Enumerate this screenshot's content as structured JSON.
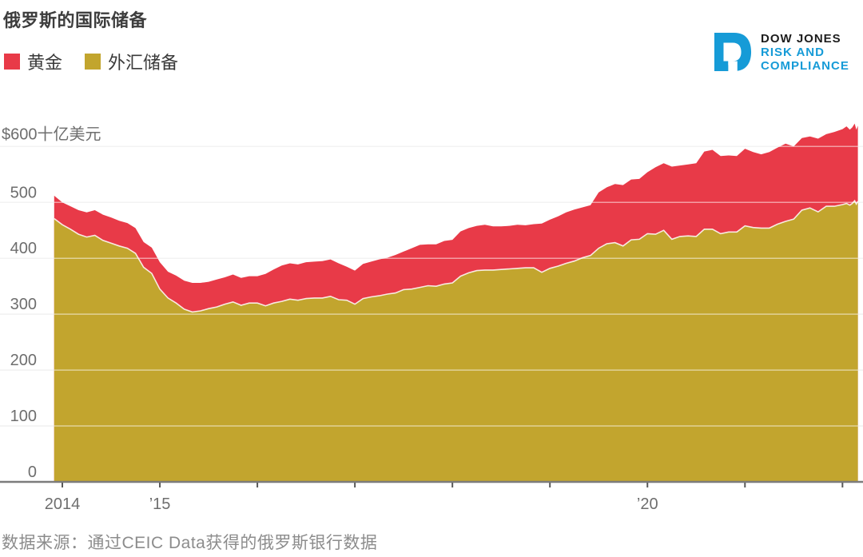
{
  "title": "俄罗斯的国际储备",
  "legend": [
    {
      "label": "黄金",
      "color": "#e83a48"
    },
    {
      "label": "外汇储备",
      "color": "#c2a52e"
    }
  ],
  "logo": {
    "alt": "Dow Jones Risk and Compliance",
    "line1": "DOW JONES",
    "line2": "RISK AND",
    "line3": "COMPLIANCE",
    "blue": "#169bd7",
    "dark": "#1d1d1d"
  },
  "source": "数据来源：通过CEIC Data获得的俄罗斯银行数据",
  "chart_data": {
    "type": "area",
    "stacked": true,
    "title": "俄罗斯的国际储备",
    "y_unit": "十亿美元",
    "y_top_label": "$600十亿美元",
    "ylim": [
      0,
      600
    ],
    "y_ticks": [
      {
        "value": 0,
        "label": "0"
      },
      {
        "value": 100,
        "label": "100"
      },
      {
        "value": 200,
        "label": "200"
      },
      {
        "value": 300,
        "label": "300"
      },
      {
        "value": 400,
        "label": "400"
      },
      {
        "value": 500,
        "label": "500"
      },
      {
        "value": 600,
        "label": "$600十亿美元"
      }
    ],
    "x_year_ticks_t": [
      0,
      12,
      24,
      36,
      48,
      60,
      72,
      84,
      96
    ],
    "x_tick_labels": [
      {
        "t": 0,
        "label": "2014"
      },
      {
        "t": 12,
        "label": "’15"
      },
      {
        "t": 72,
        "label": "’20"
      }
    ],
    "grid": true,
    "legend_position": "top-left",
    "series_info": [
      {
        "name": "外汇储备",
        "color": "#c2a52e",
        "role": "base"
      },
      {
        "name": "黄金",
        "color": "#e83a48",
        "role": "stacked-on-top"
      }
    ],
    "x_note": "t = months since Jan 2014, monthly data with weekly detail at the end",
    "t": [
      -1,
      0,
      1,
      2,
      3,
      4,
      5,
      6,
      7,
      8,
      9,
      10,
      11,
      12,
      13,
      14,
      15,
      16,
      17,
      18,
      19,
      20,
      21,
      22,
      23,
      24,
      25,
      26,
      27,
      28,
      29,
      30,
      31,
      32,
      33,
      34,
      35,
      36,
      37,
      38,
      39,
      40,
      41,
      42,
      43,
      44,
      45,
      46,
      47,
      48,
      49,
      50,
      51,
      52,
      53,
      54,
      55,
      56,
      57,
      58,
      59,
      60,
      61,
      62,
      63,
      64,
      65,
      66,
      67,
      68,
      69,
      70,
      71,
      72,
      73,
      74,
      75,
      76,
      77,
      78,
      79,
      80,
      81,
      82,
      83,
      84,
      85,
      86,
      87,
      88,
      89,
      90,
      91,
      92,
      93,
      94,
      95,
      96,
      96.5,
      96.9,
      97.2,
      97.5,
      97.7,
      97.9
    ],
    "fx_reserves": [
      471,
      460,
      452,
      443,
      438,
      441,
      432,
      427,
      422,
      418,
      409,
      384,
      373,
      345,
      329,
      320,
      309,
      304,
      306,
      310,
      313,
      318,
      322,
      316,
      320,
      320,
      315,
      320,
      323,
      327,
      325,
      328,
      329,
      329,
      332,
      326,
      325,
      318,
      328,
      331,
      333,
      336,
      338,
      344,
      345,
      348,
      351,
      350,
      354,
      356,
      368,
      374,
      378,
      379,
      379,
      380,
      381,
      382,
      383,
      383,
      375,
      382,
      386,
      391,
      395,
      401,
      405,
      418,
      426,
      428,
      422,
      433,
      434,
      444,
      443,
      450,
      434,
      439,
      440,
      439,
      452,
      452,
      444,
      447,
      447,
      458,
      455,
      454,
      454,
      461,
      466,
      470,
      486,
      490,
      483,
      493,
      493,
      496,
      498,
      495,
      498,
      503,
      497,
      502
    ],
    "gold": [
      41,
      40,
      41,
      43,
      44,
      45,
      46,
      46,
      45,
      45,
      45,
      45,
      46,
      48,
      47,
      49,
      51,
      52,
      50,
      48,
      49,
      48,
      49,
      49,
      48,
      48,
      57,
      60,
      64,
      64,
      64,
      65,
      65,
      66,
      66,
      65,
      60,
      60,
      62,
      63,
      65,
      65,
      68,
      68,
      73,
      76,
      74,
      75,
      77,
      77,
      80,
      80,
      80,
      81,
      78,
      77,
      77,
      78,
      76,
      78,
      87,
      87,
      89,
      91,
      92,
      90,
      90,
      100,
      101,
      105,
      109,
      108,
      108,
      110,
      120,
      120,
      130,
      127,
      128,
      131,
      139,
      142,
      139,
      137,
      136,
      138,
      135,
      132,
      136,
      137,
      139,
      130,
      129,
      128,
      131,
      129,
      133,
      135,
      138,
      135,
      136,
      138,
      133,
      135
    ]
  }
}
